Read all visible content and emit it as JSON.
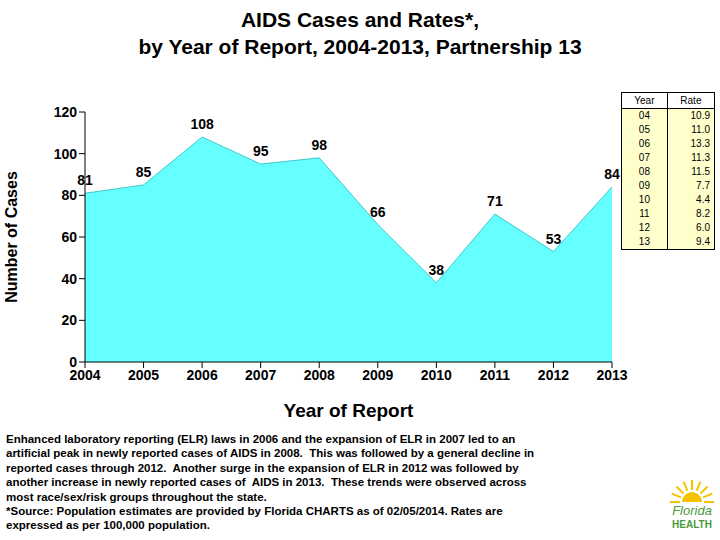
{
  "chart_data": {
    "type": "area",
    "title": [
      "AIDS Cases and Rates*,",
      "by Year of Report, 2004-2013, Partnership 13"
    ],
    "x_label": "Year of Report",
    "y_label": "Number of Cases",
    "categories": [
      "2004",
      "2005",
      "2006",
      "2007",
      "2008",
      "2009",
      "2010",
      "2011",
      "2012",
      "2013"
    ],
    "values": [
      81,
      85,
      108,
      95,
      98,
      66,
      38,
      71,
      53,
      84
    ],
    "color": "#66ffff",
    "ylim": [
      0,
      120
    ],
    "yticks": [
      0,
      20,
      40,
      60,
      80,
      100,
      120
    ],
    "grid": false,
    "data_labels": true
  },
  "table": {
    "columns": [
      "Year",
      "Rate"
    ],
    "rows": [
      [
        "04",
        "10.9"
      ],
      [
        "05",
        "11.0"
      ],
      [
        "06",
        "13.3"
      ],
      [
        "07",
        "11.3"
      ],
      [
        "08",
        "11.5"
      ],
      [
        "09",
        "7.7"
      ],
      [
        "10",
        "4.4"
      ],
      [
        "11",
        "8.2"
      ],
      [
        "12",
        "6.0"
      ],
      [
        "13",
        "9.4"
      ]
    ]
  },
  "notes": [
    "Enhanced laboratory reporting (ELR) laws in 2006 and the expansion of ELR in 2007 led to an",
    "artificial peak in newly reported cases of AIDS in 2008.  This was followed by a general decline in",
    "reported cases through 2012.  Another surge in the expansion of ELR in 2012 was followed by",
    "another increase in newly reported cases of  AIDS in 2013.  These trends were observed across",
    "most race/sex/risk groups throughout the state.",
    "*Source: Population estimates are provided by Florida CHARTS as of 02/05/2014. Rates are",
    "expressed as per 100,000 population."
  ],
  "logo": [
    "Florida",
    "HEALTH"
  ]
}
